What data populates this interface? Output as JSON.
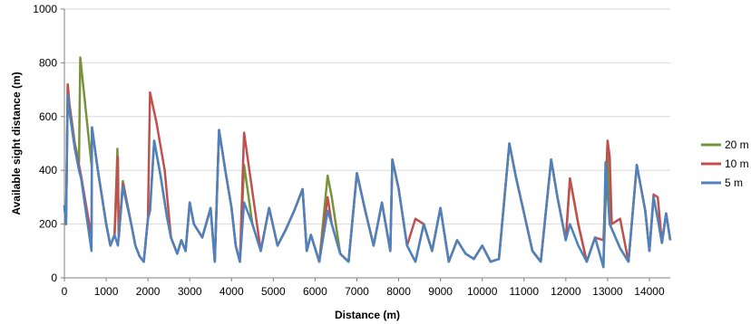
{
  "chart_data": {
    "type": "line",
    "xlabel": "Distance (m)",
    "ylabel": "Available sight distance (m)",
    "xlim": [
      0,
      14500
    ],
    "ylim": [
      0,
      1000
    ],
    "x_ticks": [
      0,
      1000,
      2000,
      3000,
      4000,
      5000,
      6000,
      7000,
      8000,
      9000,
      10000,
      11000,
      12000,
      13000,
      14000
    ],
    "y_ticks": [
      0,
      200,
      400,
      600,
      800,
      1000
    ],
    "grid": "horizontal",
    "legend_position": "right",
    "series": [
      {
        "name": "20 m",
        "color": "#77933C",
        "points": [
          [
            0,
            270
          ],
          [
            40,
            200
          ],
          [
            80,
            720
          ],
          [
            120,
            650
          ],
          [
            250,
            500
          ],
          [
            350,
            430
          ],
          [
            380,
            820
          ],
          [
            650,
            420
          ],
          [
            660,
            560
          ],
          [
            800,
            400
          ],
          [
            1000,
            200
          ],
          [
            1100,
            120
          ],
          [
            1200,
            160
          ],
          [
            1270,
            480
          ],
          [
            1300,
            150
          ],
          [
            1400,
            360
          ],
          [
            1600,
            200
          ],
          [
            1700,
            120
          ],
          [
            1800,
            80
          ],
          [
            1900,
            60
          ],
          [
            2000,
            220
          ],
          [
            2050,
            250
          ],
          [
            2150,
            510
          ],
          [
            2300,
            380
          ],
          [
            2450,
            230
          ],
          [
            2550,
            150
          ],
          [
            2700,
            90
          ],
          [
            2800,
            140
          ],
          [
            2900,
            100
          ],
          [
            3000,
            280
          ],
          [
            3100,
            200
          ],
          [
            3300,
            150
          ],
          [
            3500,
            260
          ],
          [
            3600,
            60
          ],
          [
            3700,
            550
          ],
          [
            3850,
            400
          ],
          [
            4000,
            260
          ],
          [
            4100,
            120
          ],
          [
            4200,
            60
          ],
          [
            4300,
            420
          ],
          [
            4500,
            200
          ],
          [
            4700,
            100
          ],
          [
            4900,
            260
          ],
          [
            5100,
            120
          ],
          [
            5300,
            180
          ],
          [
            5500,
            250
          ],
          [
            5700,
            330
          ],
          [
            5800,
            100
          ],
          [
            5900,
            160
          ],
          [
            6100,
            60
          ],
          [
            6300,
            380
          ],
          [
            6400,
            300
          ],
          [
            6600,
            90
          ],
          [
            6800,
            60
          ],
          [
            7000,
            390
          ],
          [
            7200,
            250
          ],
          [
            7400,
            120
          ],
          [
            7600,
            280
          ],
          [
            7800,
            100
          ],
          [
            7850,
            440
          ],
          [
            8000,
            330
          ],
          [
            8200,
            120
          ],
          [
            8400,
            60
          ],
          [
            8600,
            200
          ],
          [
            8800,
            100
          ],
          [
            9000,
            260
          ],
          [
            9200,
            60
          ],
          [
            9400,
            140
          ],
          [
            9600,
            90
          ],
          [
            9800,
            70
          ],
          [
            10000,
            120
          ],
          [
            10200,
            60
          ],
          [
            10400,
            70
          ],
          [
            10650,
            500
          ],
          [
            10800,
            380
          ],
          [
            11000,
            240
          ],
          [
            11200,
            100
          ],
          [
            11400,
            60
          ],
          [
            11650,
            440
          ],
          [
            11800,
            300
          ],
          [
            12000,
            140
          ],
          [
            12100,
            370
          ],
          [
            12300,
            200
          ],
          [
            12500,
            60
          ],
          [
            12700,
            150
          ],
          [
            12900,
            40
          ],
          [
            13000,
            510
          ],
          [
            13050,
            200
          ],
          [
            13300,
            110
          ],
          [
            13500,
            60
          ],
          [
            13700,
            420
          ],
          [
            13900,
            250
          ],
          [
            14000,
            100
          ],
          [
            14100,
            300
          ],
          [
            14200,
            220
          ],
          [
            14300,
            130
          ],
          [
            14400,
            240
          ],
          [
            14500,
            140
          ]
        ]
      },
      {
        "name": "10 m",
        "color": "#C0504D",
        "points": [
          [
            0,
            270
          ],
          [
            40,
            200
          ],
          [
            80,
            720
          ],
          [
            120,
            640
          ],
          [
            250,
            490
          ],
          [
            350,
            420
          ],
          [
            400,
            380
          ],
          [
            650,
            150
          ],
          [
            660,
            560
          ],
          [
            800,
            400
          ],
          [
            1000,
            200
          ],
          [
            1100,
            120
          ],
          [
            1200,
            160
          ],
          [
            1280,
            450
          ],
          [
            1300,
            150
          ],
          [
            1400,
            350
          ],
          [
            1600,
            200
          ],
          [
            1700,
            120
          ],
          [
            1800,
            80
          ],
          [
            1900,
            60
          ],
          [
            2000,
            220
          ],
          [
            2050,
            690
          ],
          [
            2200,
            580
          ],
          [
            2400,
            400
          ],
          [
            2550,
            150
          ],
          [
            2700,
            90
          ],
          [
            2800,
            140
          ],
          [
            2900,
            100
          ],
          [
            3000,
            280
          ],
          [
            3100,
            200
          ],
          [
            3300,
            150
          ],
          [
            3500,
            260
          ],
          [
            3600,
            60
          ],
          [
            3700,
            550
          ],
          [
            3850,
            400
          ],
          [
            4000,
            260
          ],
          [
            4100,
            120
          ],
          [
            4200,
            60
          ],
          [
            4300,
            540
          ],
          [
            4500,
            320
          ],
          [
            4700,
            100
          ],
          [
            4900,
            260
          ],
          [
            5100,
            120
          ],
          [
            5300,
            180
          ],
          [
            5500,
            250
          ],
          [
            5700,
            330
          ],
          [
            5800,
            100
          ],
          [
            5900,
            160
          ],
          [
            6100,
            60
          ],
          [
            6300,
            300
          ],
          [
            6400,
            200
          ],
          [
            6600,
            90
          ],
          [
            6800,
            60
          ],
          [
            7000,
            390
          ],
          [
            7200,
            250
          ],
          [
            7400,
            120
          ],
          [
            7600,
            280
          ],
          [
            7800,
            100
          ],
          [
            7850,
            440
          ],
          [
            8000,
            330
          ],
          [
            8200,
            120
          ],
          [
            8400,
            220
          ],
          [
            8600,
            200
          ],
          [
            8800,
            100
          ],
          [
            9000,
            260
          ],
          [
            9200,
            60
          ],
          [
            9400,
            140
          ],
          [
            9600,
            90
          ],
          [
            9800,
            70
          ],
          [
            10000,
            120
          ],
          [
            10200,
            60
          ],
          [
            10400,
            70
          ],
          [
            10650,
            500
          ],
          [
            10800,
            380
          ],
          [
            11000,
            240
          ],
          [
            11200,
            100
          ],
          [
            11400,
            60
          ],
          [
            11650,
            440
          ],
          [
            11800,
            300
          ],
          [
            12000,
            140
          ],
          [
            12100,
            370
          ],
          [
            12300,
            200
          ],
          [
            12500,
            60
          ],
          [
            12700,
            150
          ],
          [
            12900,
            140
          ],
          [
            13000,
            510
          ],
          [
            13050,
            450
          ],
          [
            13100,
            200
          ],
          [
            13300,
            220
          ],
          [
            13500,
            60
          ],
          [
            13700,
            420
          ],
          [
            13900,
            250
          ],
          [
            14000,
            100
          ],
          [
            14100,
            310
          ],
          [
            14200,
            300
          ],
          [
            14300,
            130
          ],
          [
            14400,
            240
          ],
          [
            14500,
            140
          ]
        ]
      },
      {
        "name": "5 m",
        "color": "#4F81BD",
        "points": [
          [
            0,
            270
          ],
          [
            40,
            200
          ],
          [
            80,
            680
          ],
          [
            120,
            620
          ],
          [
            250,
            480
          ],
          [
            350,
            400
          ],
          [
            400,
            370
          ],
          [
            650,
            100
          ],
          [
            660,
            560
          ],
          [
            800,
            400
          ],
          [
            1000,
            200
          ],
          [
            1100,
            120
          ],
          [
            1200,
            160
          ],
          [
            1280,
            120
          ],
          [
            1300,
            150
          ],
          [
            1400,
            340
          ],
          [
            1600,
            200
          ],
          [
            1700,
            120
          ],
          [
            1800,
            80
          ],
          [
            1900,
            60
          ],
          [
            2000,
            220
          ],
          [
            2050,
            250
          ],
          [
            2150,
            510
          ],
          [
            2300,
            380
          ],
          [
            2450,
            230
          ],
          [
            2550,
            150
          ],
          [
            2700,
            90
          ],
          [
            2800,
            140
          ],
          [
            2900,
            100
          ],
          [
            3000,
            280
          ],
          [
            3100,
            200
          ],
          [
            3300,
            150
          ],
          [
            3500,
            260
          ],
          [
            3600,
            60
          ],
          [
            3700,
            550
          ],
          [
            3850,
            400
          ],
          [
            4000,
            260
          ],
          [
            4100,
            120
          ],
          [
            4200,
            60
          ],
          [
            4300,
            280
          ],
          [
            4500,
            200
          ],
          [
            4700,
            100
          ],
          [
            4900,
            260
          ],
          [
            5100,
            120
          ],
          [
            5300,
            180
          ],
          [
            5500,
            250
          ],
          [
            5700,
            330
          ],
          [
            5800,
            100
          ],
          [
            5900,
            160
          ],
          [
            6100,
            60
          ],
          [
            6300,
            250
          ],
          [
            6400,
            200
          ],
          [
            6600,
            90
          ],
          [
            6800,
            60
          ],
          [
            7000,
            390
          ],
          [
            7200,
            250
          ],
          [
            7400,
            120
          ],
          [
            7600,
            280
          ],
          [
            7800,
            100
          ],
          [
            7850,
            440
          ],
          [
            8000,
            330
          ],
          [
            8200,
            120
          ],
          [
            8400,
            60
          ],
          [
            8600,
            200
          ],
          [
            8800,
            100
          ],
          [
            9000,
            260
          ],
          [
            9200,
            60
          ],
          [
            9400,
            140
          ],
          [
            9600,
            90
          ],
          [
            9800,
            70
          ],
          [
            10000,
            120
          ],
          [
            10200,
            60
          ],
          [
            10400,
            70
          ],
          [
            10650,
            500
          ],
          [
            10800,
            380
          ],
          [
            11000,
            240
          ],
          [
            11200,
            100
          ],
          [
            11400,
            60
          ],
          [
            11650,
            440
          ],
          [
            11800,
            300
          ],
          [
            12000,
            140
          ],
          [
            12100,
            200
          ],
          [
            12300,
            120
          ],
          [
            12500,
            60
          ],
          [
            12700,
            150
          ],
          [
            12900,
            40
          ],
          [
            12950,
            430
          ],
          [
            13050,
            200
          ],
          [
            13300,
            110
          ],
          [
            13500,
            60
          ],
          [
            13700,
            420
          ],
          [
            13900,
            250
          ],
          [
            14000,
            100
          ],
          [
            14100,
            300
          ],
          [
            14200,
            220
          ],
          [
            14300,
            130
          ],
          [
            14400,
            240
          ],
          [
            14500,
            140
          ]
        ]
      }
    ]
  }
}
